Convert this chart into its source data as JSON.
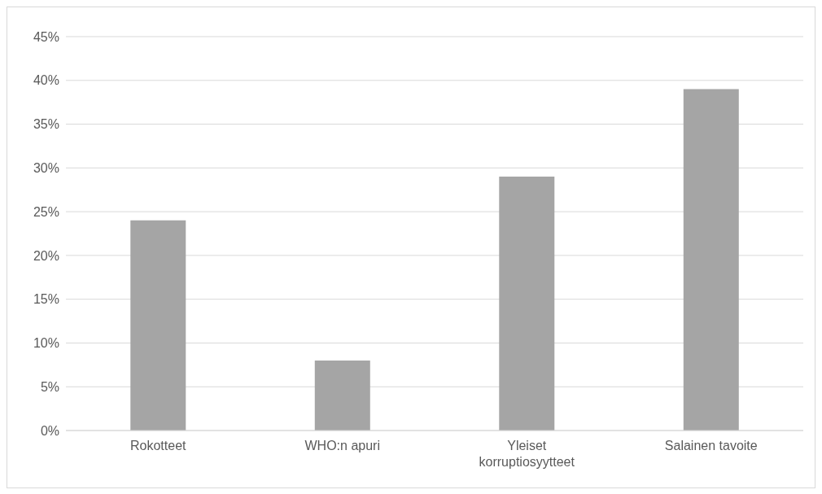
{
  "chart_data": {
    "type": "bar",
    "categories": [
      "Rokotteet",
      "WHO:n apuri",
      "Yleiset korruptiosyytteet",
      "Salainen tavoite"
    ],
    "values": [
      24,
      8,
      29,
      39
    ],
    "color": "#a5a5a5",
    "ylim": [
      0,
      45
    ],
    "yticks": [
      {
        "value": 0,
        "label": "0%"
      },
      {
        "value": 5,
        "label": "5%"
      },
      {
        "value": 10,
        "label": "10%"
      },
      {
        "value": 15,
        "label": "15%"
      },
      {
        "value": 20,
        "label": "20%"
      },
      {
        "value": 25,
        "label": "25%"
      },
      {
        "value": 30,
        "label": "30%"
      },
      {
        "value": 35,
        "label": "35%"
      },
      {
        "value": 40,
        "label": "40%"
      },
      {
        "value": 45,
        "label": "45%"
      }
    ],
    "grid": "y",
    "legend": false
  }
}
